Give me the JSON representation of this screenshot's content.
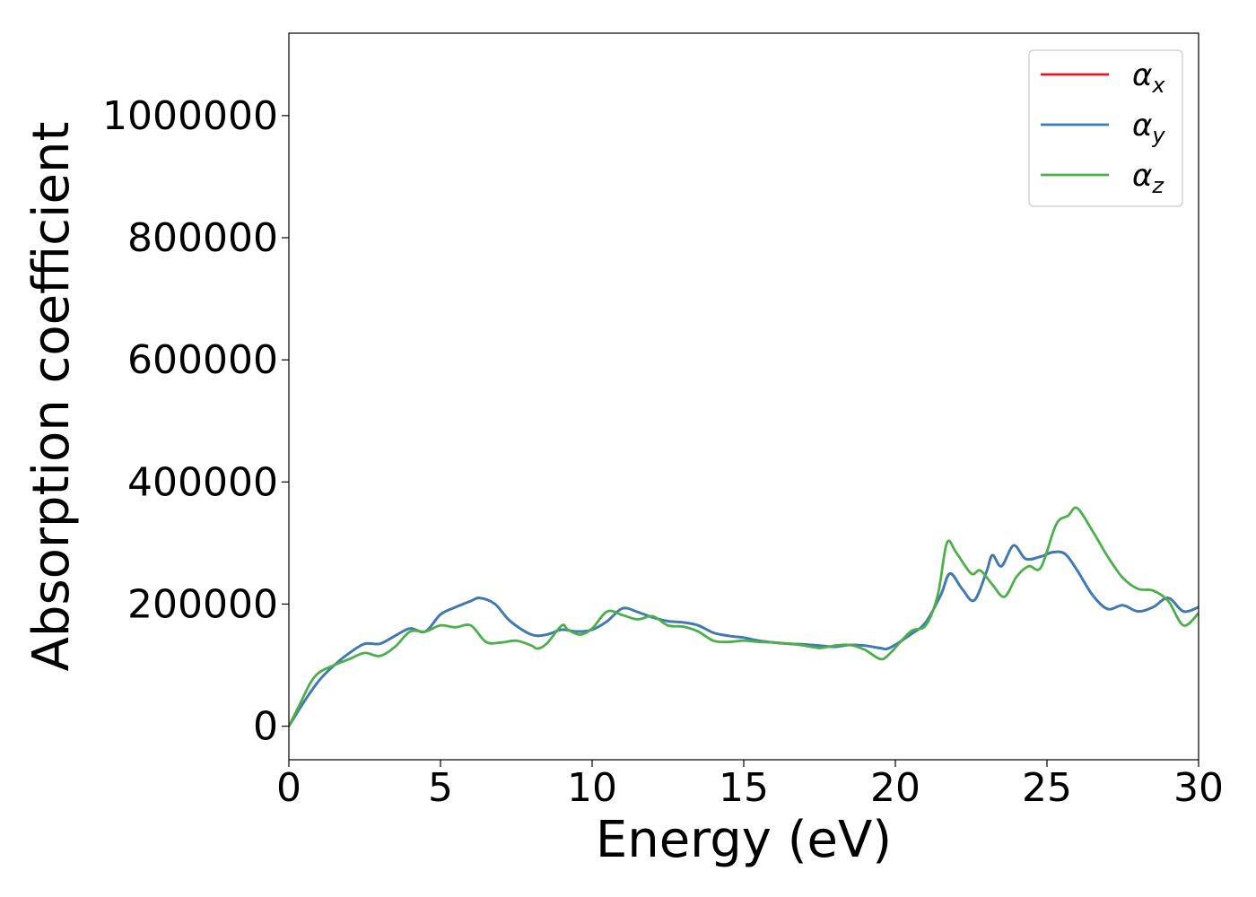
{
  "chart_data": {
    "type": "line",
    "xlabel": "Energy (eV)",
    "ylabel": "Absorption coefficient",
    "xlim": [
      0,
      30
    ],
    "ylim": [
      -55000,
      1135000
    ],
    "xticks": [
      0,
      5,
      10,
      15,
      20,
      25,
      30
    ],
    "xtick_labels": [
      "0",
      "5",
      "10",
      "15",
      "20",
      "25",
      "30"
    ],
    "yticks": [
      0,
      200000,
      400000,
      600000,
      800000,
      1000000
    ],
    "ytick_labels": [
      "0",
      "200000",
      "400000",
      "600000",
      "800000",
      "1000000"
    ],
    "grid": false,
    "legend_position": "top-right",
    "series": [
      {
        "name": "α",
        "subscript": "x",
        "color": "#e41a1c",
        "x": [
          0,
          0.5,
          1,
          1.5,
          2,
          2.5,
          3,
          3.5,
          4,
          4.5,
          5,
          5.5,
          6,
          6.3,
          6.8,
          7.3,
          8,
          8.5,
          9,
          9.5,
          10,
          10.5,
          11,
          11.5,
          12,
          12.5,
          13,
          13.5,
          14,
          14.5,
          15,
          15.5,
          16,
          16.5,
          17,
          17.5,
          18,
          18.5,
          19,
          19.5,
          19.8,
          20.5,
          21,
          21.5,
          21.8,
          22.2,
          22.6,
          23,
          23.2,
          23.5,
          23.9,
          24.3,
          24.8,
          25.2,
          25.6,
          26,
          26.5,
          27,
          27.5,
          28,
          28.5,
          29,
          29.5,
          30
        ],
        "y": [
          0,
          40000,
          75000,
          100000,
          120000,
          135000,
          135000,
          148000,
          160000,
          155000,
          183000,
          195000,
          205000,
          210000,
          200000,
          172000,
          150000,
          150000,
          158000,
          155000,
          158000,
          172000,
          193000,
          187000,
          178000,
          172000,
          170000,
          165000,
          153000,
          148000,
          145000,
          140000,
          137000,
          135000,
          134000,
          132000,
          130000,
          133000,
          132000,
          128000,
          128000,
          150000,
          170000,
          215000,
          250000,
          225000,
          206000,
          252000,
          280000,
          262000,
          296000,
          274000,
          278000,
          285000,
          282000,
          255000,
          215000,
          192000,
          198000,
          188000,
          195000,
          210000,
          188000,
          195000
        ]
      },
      {
        "name": "α",
        "subscript": "y",
        "color": "#377eb8",
        "x": [
          0,
          0.5,
          1,
          1.5,
          2,
          2.5,
          3,
          3.5,
          4,
          4.5,
          5,
          5.5,
          6,
          6.3,
          6.8,
          7.3,
          8,
          8.5,
          9,
          9.5,
          10,
          10.5,
          11,
          11.5,
          12,
          12.5,
          13,
          13.5,
          14,
          14.5,
          15,
          15.5,
          16,
          16.5,
          17,
          17.5,
          18,
          18.5,
          19,
          19.5,
          19.8,
          20.5,
          21,
          21.5,
          21.8,
          22.2,
          22.6,
          23,
          23.2,
          23.5,
          23.9,
          24.3,
          24.8,
          25.2,
          25.6,
          26,
          26.5,
          27,
          27.5,
          28,
          28.5,
          29,
          29.5,
          30
        ],
        "y": [
          0,
          40000,
          75000,
          100000,
          120000,
          135000,
          135000,
          148000,
          160000,
          155000,
          183000,
          195000,
          205000,
          210000,
          200000,
          172000,
          150000,
          150000,
          158000,
          155000,
          158000,
          172000,
          193000,
          187000,
          178000,
          172000,
          170000,
          165000,
          153000,
          148000,
          145000,
          140000,
          137000,
          135000,
          134000,
          132000,
          130000,
          133000,
          132000,
          128000,
          128000,
          150000,
          170000,
          215000,
          250000,
          225000,
          206000,
          252000,
          280000,
          262000,
          296000,
          274000,
          278000,
          285000,
          282000,
          255000,
          215000,
          192000,
          198000,
          188000,
          195000,
          210000,
          188000,
          195000
        ]
      },
      {
        "name": "α",
        "subscript": "z",
        "color": "#4daf4a",
        "x": [
          0,
          0.4,
          0.7,
          1,
          1.5,
          2,
          2.5,
          3,
          3.5,
          4,
          4.5,
          5,
          5.5,
          6,
          6.5,
          7,
          7.5,
          8,
          8.2,
          8.5,
          9,
          9.2,
          9.6,
          10,
          10.5,
          11,
          11.5,
          12,
          12.5,
          13,
          13.5,
          14,
          14.5,
          15,
          15.5,
          16,
          16.5,
          17,
          17.5,
          18,
          18.5,
          19,
          19.5,
          19.8,
          20.5,
          21,
          21.4,
          21.7,
          22,
          22.5,
          22.8,
          23.2,
          23.6,
          24,
          24.4,
          24.8,
          25.3,
          25.7,
          26,
          26.5,
          27,
          27.5,
          28,
          28.5,
          29,
          29.5,
          30
        ],
        "y": [
          0,
          40000,
          70000,
          88000,
          100000,
          110000,
          120000,
          115000,
          130000,
          155000,
          155000,
          165000,
          162000,
          165000,
          138000,
          137000,
          140000,
          132000,
          127000,
          135000,
          165000,
          158000,
          150000,
          160000,
          188000,
          182000,
          175000,
          180000,
          165000,
          163000,
          155000,
          140000,
          138000,
          140000,
          138000,
          137000,
          135000,
          132000,
          128000,
          132000,
          133000,
          125000,
          110000,
          118000,
          155000,
          165000,
          215000,
          300000,
          285000,
          250000,
          255000,
          232000,
          212000,
          245000,
          262000,
          260000,
          330000,
          345000,
          357000,
          320000,
          278000,
          243000,
          225000,
          222000,
          205000,
          165000,
          185000
        ]
      }
    ]
  }
}
